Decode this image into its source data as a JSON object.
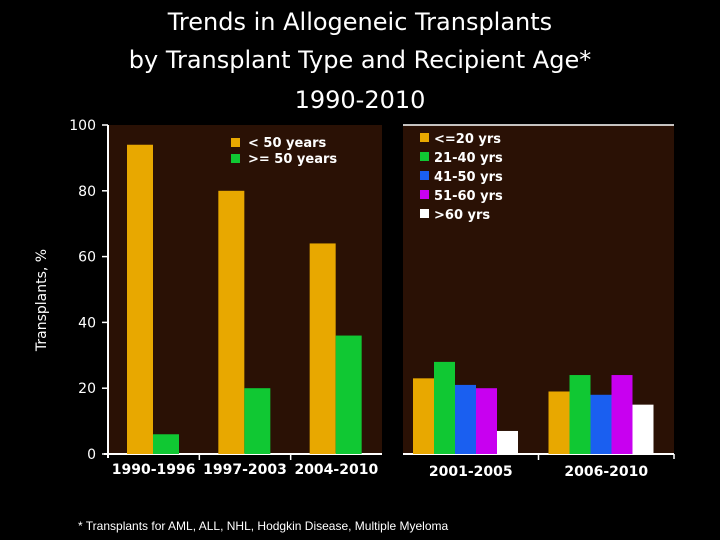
{
  "title": {
    "line1": "Trends in Allogeneic Transplants",
    "line2": "by Transplant Type and Recipient Age*",
    "line3": "1990-2010"
  },
  "ylabel": "Transplants, %",
  "footnote": "* Transplants for AML, ALL, NHL, Hodgkin Disease, Multiple Myeloma",
  "colors": {
    "panel_bg": "#2a1105",
    "axis": "#ffffff"
  },
  "chart_data": [
    {
      "type": "bar",
      "categories": [
        "1990-1996",
        "1997-2003",
        "2004-2010"
      ],
      "series": [
        {
          "name": "< 50 years",
          "color": "#e8a800",
          "values": [
            94,
            80,
            64
          ]
        },
        {
          "name": ">= 50 years",
          "color": "#10c833",
          "values": [
            6,
            20,
            36
          ]
        }
      ],
      "ylim": [
        0,
        100
      ],
      "yticks": [
        0,
        20,
        40,
        60,
        80,
        100
      ],
      "ylabel": "Transplants, %",
      "legend": "top-right"
    },
    {
      "type": "bar",
      "categories": [
        "2001-2005",
        "2006-2010"
      ],
      "series": [
        {
          "name": "<=20 yrs",
          "color": "#e8a800",
          "values": [
            23,
            19
          ]
        },
        {
          "name": "21-40 yrs",
          "color": "#10c833",
          "values": [
            28,
            24
          ]
        },
        {
          "name": "41-50 yrs",
          "color": "#1a5ff0",
          "values": [
            21,
            18
          ]
        },
        {
          "name": "51-60 yrs",
          "color": "#c800f0",
          "values": [
            20,
            24
          ]
        },
        {
          "name": ">60 yrs",
          "color": "#ffffff",
          "values": [
            7,
            15
          ]
        }
      ],
      "ylim": [
        0,
        100
      ],
      "legend": "top-left"
    }
  ]
}
